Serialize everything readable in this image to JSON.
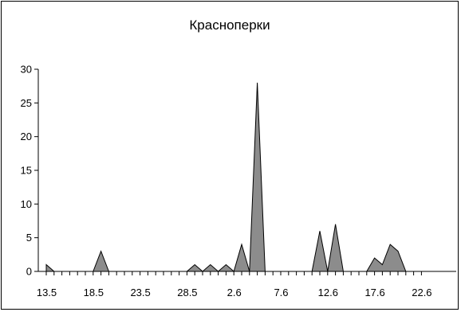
{
  "chart_data": {
    "type": "area",
    "title": "Красноперки",
    "xlabel": "",
    "ylabel": "",
    "ylim": [
      0,
      30
    ],
    "yticks": [
      0,
      5,
      10,
      15,
      20,
      25,
      30
    ],
    "xtick_labels": [
      "13.5",
      "18.5",
      "23.5",
      "28.5",
      "2.6",
      "7.6",
      "12.6",
      "17.6",
      "22.6"
    ],
    "grid": false,
    "legend": "none",
    "colors": {
      "fill": "#8c8c8c",
      "stroke": "#000000"
    },
    "series": [
      {
        "values": [
          1,
          0,
          0,
          0,
          0,
          0,
          0,
          3,
          0,
          0,
          0,
          0,
          0,
          0,
          0,
          0,
          0,
          0,
          0,
          1,
          0,
          1,
          0,
          1,
          0,
          4,
          0,
          28,
          0,
          0,
          0,
          0,
          0,
          0,
          0,
          6,
          0,
          7,
          0,
          0,
          0,
          0,
          2,
          1,
          4,
          3,
          0,
          0,
          0
        ]
      }
    ]
  }
}
